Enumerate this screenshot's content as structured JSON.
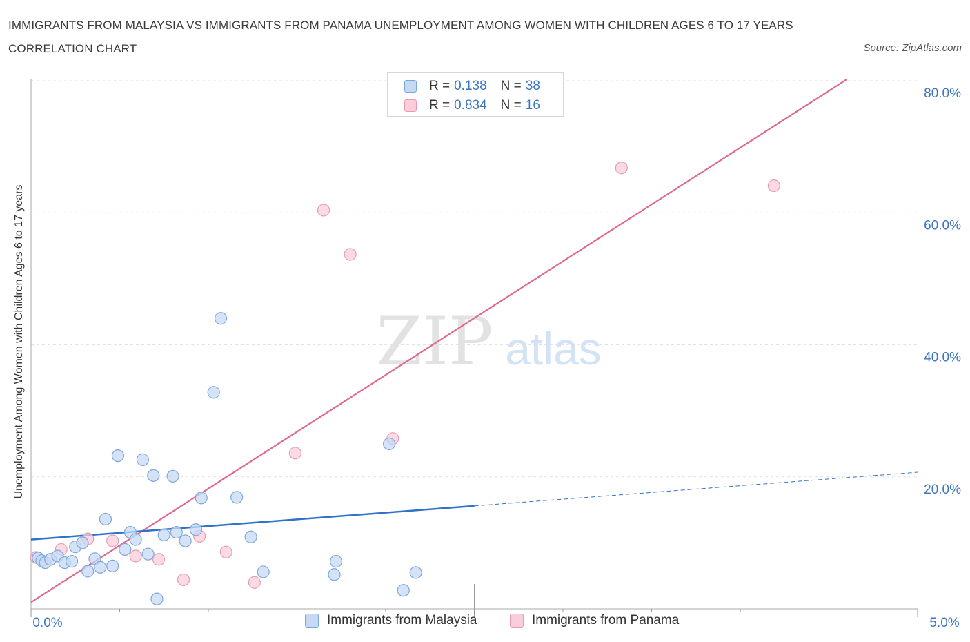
{
  "title": "IMMIGRANTS FROM MALAYSIA VS IMMIGRANTS FROM PANAMA UNEMPLOYMENT AMONG WOMEN WITH CHILDREN AGES 6 TO 17 YEARS CORRELATION CHART",
  "source": "Source: ZipAtlas.com",
  "watermark": {
    "zip": "ZIP",
    "atlas": "atlas"
  },
  "legend": {
    "r_label": "R =",
    "n_label": "N =",
    "rows": [
      {
        "name": "Immigrants from Malaysia",
        "r": "0.138",
        "n": "38"
      },
      {
        "name": "Immigrants from Panama",
        "r": "0.834",
        "n": "16"
      }
    ]
  },
  "colors": {
    "malaysia_fill": "#c5d9f3",
    "malaysia_stroke": "#7ea6de",
    "malaysia_line": "#2f72c9",
    "panama_fill": "#f9cdd9",
    "panama_stroke": "#eb9ab2",
    "panama_line": "#e0678f",
    "axis_text": "#3b75c4",
    "grid": "#dde3ea"
  },
  "chart_data": {
    "type": "scatter",
    "title": "IMMIGRANTS FROM MALAYSIA VS IMMIGRANTS FROM PANAMA UNEMPLOYMENT AMONG WOMEN WITH CHILDREN AGES 6 TO 17 YEARS CORRELATION CHART",
    "xlabel": "",
    "ylabel": "Unemployment Among Women with Children Ages 6 to 17 years",
    "xlim": [
      0,
      5
    ],
    "ylim": [
      0,
      80
    ],
    "x_ticks": [
      {
        "value": 0,
        "label": "0.0%"
      },
      {
        "value": 5,
        "label": "5.0%"
      }
    ],
    "y_ticks": [
      {
        "value": 20,
        "label": "20.0%"
      },
      {
        "value": 40,
        "label": "40.0%"
      },
      {
        "value": 60,
        "label": "60.0%"
      },
      {
        "value": 80,
        "label": "80.0%"
      }
    ],
    "legend_position": "top-center",
    "series": [
      {
        "name": "Immigrants from Malaysia",
        "r": 0.138,
        "n": 38,
        "points": [
          [
            0.04,
            7.7
          ],
          [
            0.06,
            7.3
          ],
          [
            0.08,
            7.0
          ],
          [
            0.11,
            7.5
          ],
          [
            0.15,
            8.0
          ],
          [
            0.19,
            7.0
          ],
          [
            0.23,
            7.2
          ],
          [
            0.25,
            9.4
          ],
          [
            0.29,
            10.0
          ],
          [
            0.32,
            5.7
          ],
          [
            0.36,
            7.6
          ],
          [
            0.39,
            6.3
          ],
          [
            0.42,
            13.6
          ],
          [
            0.46,
            6.5
          ],
          [
            0.49,
            23.2
          ],
          [
            0.53,
            9.0
          ],
          [
            0.56,
            11.6
          ],
          [
            0.59,
            10.5
          ],
          [
            0.63,
            22.6
          ],
          [
            0.66,
            8.3
          ],
          [
            0.69,
            20.2
          ],
          [
            0.71,
            1.5
          ],
          [
            0.75,
            11.2
          ],
          [
            0.8,
            20.1
          ],
          [
            0.82,
            11.6
          ],
          [
            0.87,
            10.3
          ],
          [
            0.93,
            12.0
          ],
          [
            0.96,
            16.8
          ],
          [
            1.03,
            32.8
          ],
          [
            1.07,
            44.0
          ],
          [
            1.16,
            16.9
          ],
          [
            1.24,
            10.9
          ],
          [
            1.31,
            5.6
          ],
          [
            1.71,
            5.2
          ],
          [
            1.72,
            7.2
          ],
          [
            2.02,
            25.0
          ],
          [
            2.1,
            2.8
          ],
          [
            2.17,
            5.5
          ]
        ],
        "trend": {
          "x0": 0,
          "y0": 10.5,
          "x1": 2.5,
          "y1": 15.6,
          "dashed_to_x": 5,
          "dashed_to_y": 20.7
        }
      },
      {
        "name": "Immigrants from Panama",
        "r": 0.834,
        "n": 16,
        "points": [
          [
            0.03,
            7.8
          ],
          [
            0.17,
            9.0
          ],
          [
            0.32,
            10.6
          ],
          [
            0.46,
            10.3
          ],
          [
            0.59,
            8.0
          ],
          [
            0.72,
            7.5
          ],
          [
            0.86,
            4.4
          ],
          [
            0.95,
            11.0
          ],
          [
            1.1,
            8.6
          ],
          [
            1.26,
            4.0
          ],
          [
            1.49,
            23.6
          ],
          [
            1.65,
            60.4
          ],
          [
            1.8,
            53.7
          ],
          [
            2.04,
            25.8
          ],
          [
            3.33,
            66.8
          ],
          [
            4.19,
            64.1
          ]
        ],
        "trend": {
          "x0": 0,
          "y0": 1.0,
          "x1": 4.6,
          "y1": 80.2
        }
      }
    ]
  }
}
